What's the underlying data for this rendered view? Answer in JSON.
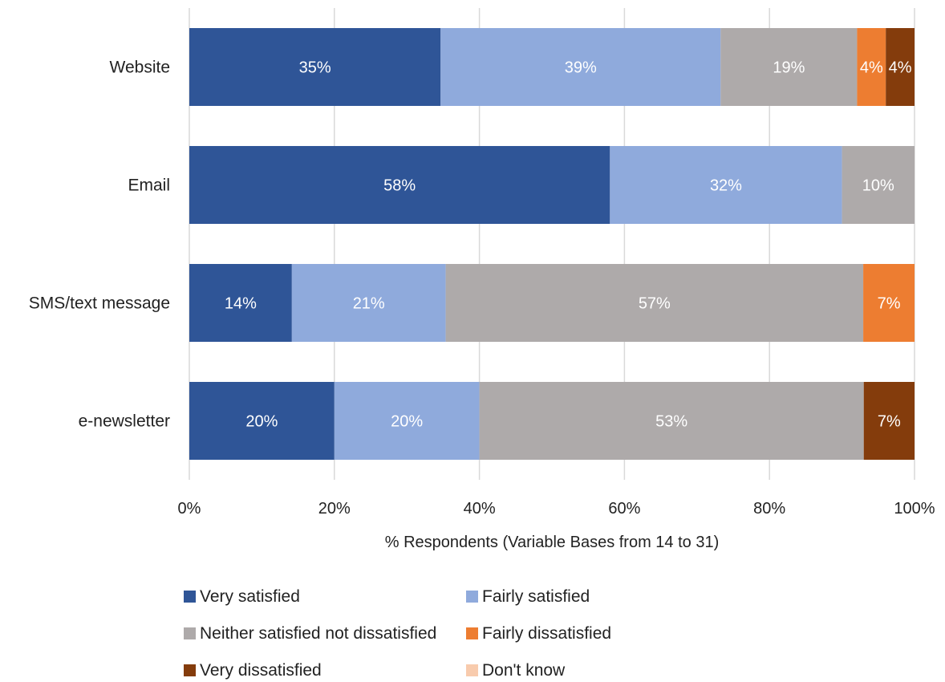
{
  "chart_data": {
    "type": "bar",
    "orientation": "horizontal",
    "stacked": "percent",
    "categories": [
      "Website",
      "Email",
      "SMS/text message",
      "e-newsletter"
    ],
    "series": [
      {
        "name": "Very satisfied",
        "color": "#2f5597",
        "values": [
          35,
          58,
          14,
          20
        ],
        "labels": [
          "35%",
          "58%",
          "14%",
          "20%"
        ]
      },
      {
        "name": "Fairly satisfied",
        "color": "#8faadc",
        "values": [
          39,
          32,
          21,
          20
        ],
        "labels": [
          "39%",
          "32%",
          "21%",
          "20%"
        ]
      },
      {
        "name": "Neither satisfied not dissatisfied",
        "color": "#aeaaaa",
        "values": [
          19,
          10,
          57,
          53
        ],
        "labels": [
          "19%",
          "10%",
          "57%",
          "53%"
        ]
      },
      {
        "name": "Fairly dissatisfied",
        "color": "#ed7d31",
        "values": [
          4,
          0,
          7,
          0
        ],
        "labels": [
          "4%",
          "",
          "7%",
          ""
        ]
      },
      {
        "name": "Very dissatisfied",
        "color": "#843c0c",
        "values": [
          4,
          0,
          0,
          7
        ],
        "labels": [
          "4%",
          "",
          "",
          "7%"
        ]
      },
      {
        "name": "Don't know",
        "color": "#f8cbad",
        "values": [
          0,
          0,
          0,
          0
        ],
        "labels": [
          "",
          "",
          "",
          ""
        ]
      }
    ],
    "xlabel": "% Respondents (Variable Bases from 14 to 31)",
    "xlim": [
      0,
      100
    ],
    "xticks": [
      "0%",
      "20%",
      "40%",
      "60%",
      "80%",
      "100%"
    ],
    "grid": "vertical",
    "legend_position": "bottom"
  }
}
